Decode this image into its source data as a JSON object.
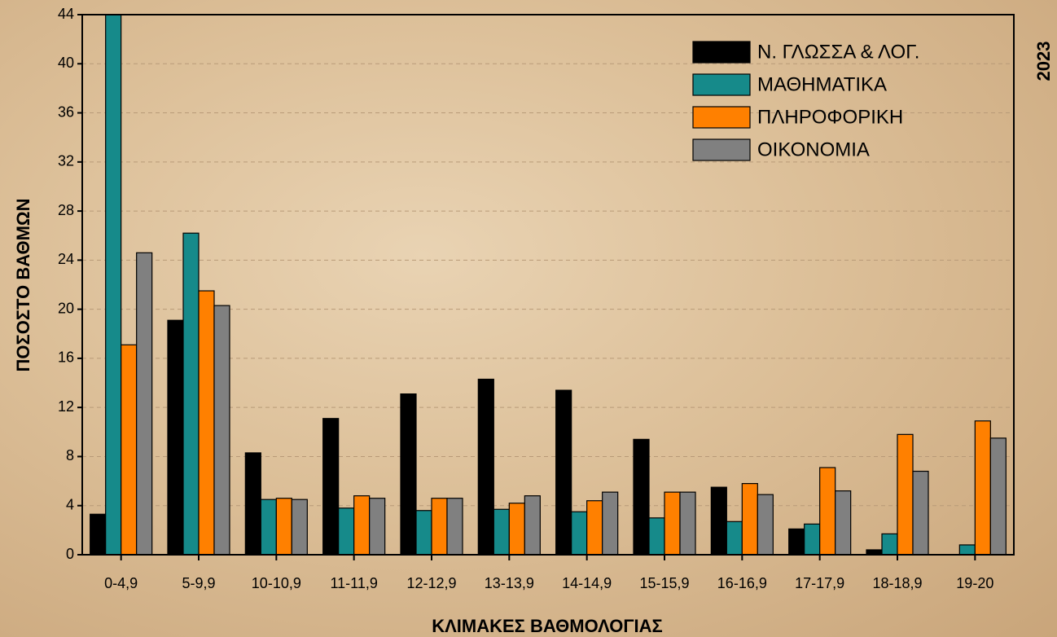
{
  "chart_data": {
    "type": "bar",
    "title": "2023",
    "x_label": "ΚΛΙΜΑΚΕΣ ΒΑΘΜΟΛΟΓΙΑΣ",
    "y_label": "ΠΟΣΟΣΤΟ ΒΑΘΜΩΝ",
    "categories": [
      "0-4,9",
      "5-9,9",
      "10-10,9",
      "11-11,9",
      "12-12,9",
      "13-13,9",
      "14-14,9",
      "15-15,9",
      "16-16,9",
      "17-17,9",
      "18-18,9",
      "19-20"
    ],
    "series": [
      {
        "name": "Ν. ΓΛΩΣΣΑ & ΛΟΓ.",
        "color": "#000000",
        "values": [
          3.3,
          19.1,
          8.3,
          11.1,
          13.1,
          14.3,
          13.4,
          9.4,
          5.5,
          2.1,
          0.4,
          0
        ]
      },
      {
        "name": "ΜΑΘΗΜΑΤΙΚΑ",
        "color": "#168a8a",
        "values": [
          44,
          26.2,
          4.5,
          3.8,
          3.6,
          3.7,
          3.5,
          3.0,
          2.7,
          2.5,
          1.7,
          0.8
        ]
      },
      {
        "name": "ΠΛΗΡΟΦΟΡΙΚΗ",
        "color": "#ff8000",
        "values": [
          17.1,
          21.5,
          4.6,
          4.8,
          4.6,
          4.2,
          4.4,
          5.1,
          5.8,
          7.1,
          9.8,
          10.9
        ]
      },
      {
        "name": "ΟΙΚΟΝΟΜΙΑ",
        "color": "#808080",
        "values": [
          24.6,
          20.3,
          4.5,
          4.6,
          4.6,
          4.8,
          5.1,
          5.1,
          4.9,
          5.2,
          6.8,
          9.5
        ]
      }
    ],
    "ylim": [
      0,
      44
    ],
    "yticks": [
      0,
      4,
      8,
      12,
      16,
      20,
      24,
      28,
      32,
      36,
      40,
      44
    ],
    "grid": true,
    "legend": "upper-right"
  }
}
